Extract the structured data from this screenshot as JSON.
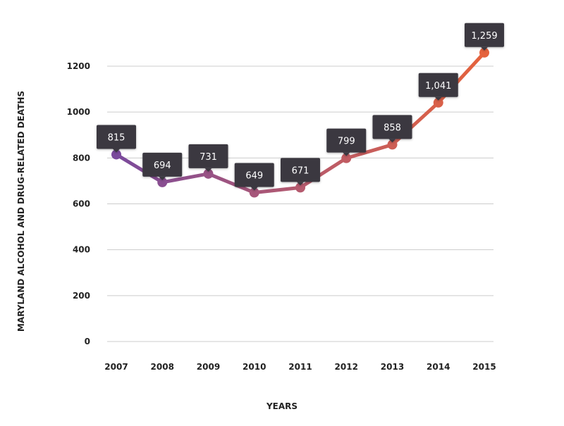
{
  "chart_data": {
    "type": "line",
    "title": "",
    "xlabel": "YEARS",
    "ylabel": "MARYLAND ALCOHOL AND DRUG-RELATED DEATHS",
    "categories": [
      "2007",
      "2008",
      "2009",
      "2010",
      "2011",
      "2012",
      "2013",
      "2014",
      "2015"
    ],
    "values": [
      815,
      694,
      731,
      649,
      671,
      799,
      858,
      1041,
      1259
    ],
    "data_labels": [
      "815",
      "694",
      "731",
      "649",
      "671",
      "799",
      "858",
      "1,041",
      "1,259"
    ],
    "ylim": [
      0,
      1200
    ],
    "yticks": [
      "0",
      "200",
      "400",
      "600",
      "800",
      "1000",
      "1200"
    ],
    "grid": true,
    "legend": "none",
    "colors": {
      "start": "#7a4a9c",
      "middle": "#b55a6e",
      "end": "#e5623c",
      "label_bg": "#3a3740",
      "grid": "#cccccc"
    }
  }
}
